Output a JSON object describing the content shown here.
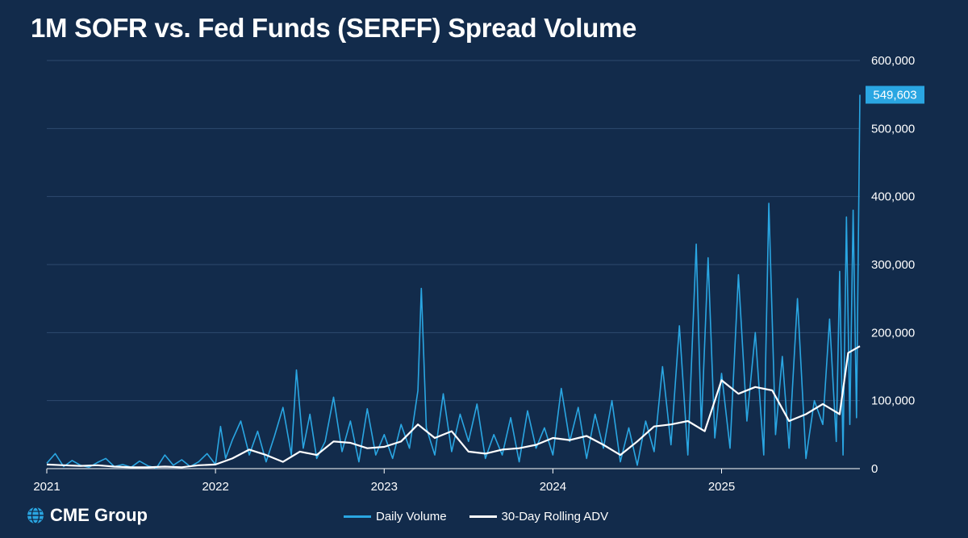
{
  "title": "1M SOFR vs. Fed Funds (SERFF) Spread Volume",
  "brand": {
    "logo_text": "CME Group",
    "logo_icon": "globe-icon"
  },
  "colors": {
    "background": "#122b4b",
    "daily": "#2aa6e2",
    "rolling": "#ffffff",
    "grid": "#2e4a6e",
    "callout": "#2aa6e2"
  },
  "legend": [
    {
      "label": "Daily Volume",
      "color": "#2aa6e2"
    },
    {
      "label": "30-Day Rolling ADV",
      "color": "#ffffff"
    }
  ],
  "chart_data": {
    "type": "line",
    "title": "1M SOFR vs. Fed Funds (SERFF) Spread Volume",
    "xlabel": "",
    "ylabel": "",
    "xlim": [
      2021.0,
      2025.82
    ],
    "ylim": [
      0,
      600000
    ],
    "x_ticks": [
      {
        "value": 2021,
        "label": "2021"
      },
      {
        "value": 2022,
        "label": "2022"
      },
      {
        "value": 2023,
        "label": "2023"
      },
      {
        "value": 2024,
        "label": "2024"
      },
      {
        "value": 2025,
        "label": "2025"
      }
    ],
    "y_ticks": [
      {
        "value": 0,
        "label": "0"
      },
      {
        "value": 100000,
        "label": "100,000"
      },
      {
        "value": 200000,
        "label": "200,000"
      },
      {
        "value": 300000,
        "label": "300,000"
      },
      {
        "value": 400000,
        "label": "400,000"
      },
      {
        "value": 500000,
        "label": "500,000"
      },
      {
        "value": 600000,
        "label": "600,000"
      }
    ],
    "last_value_label": "549,603",
    "last_value": 549603,
    "series": [
      {
        "name": "Daily Volume",
        "x": [
          2021.0,
          2021.05,
          2021.1,
          2021.15,
          2021.2,
          2021.25,
          2021.3,
          2021.35,
          2021.4,
          2021.45,
          2021.5,
          2021.55,
          2021.6,
          2021.65,
          2021.7,
          2021.75,
          2021.8,
          2021.85,
          2021.9,
          2021.95,
          2022.0,
          2022.03,
          2022.06,
          2022.1,
          2022.15,
          2022.2,
          2022.25,
          2022.3,
          2022.35,
          2022.4,
          2022.45,
          2022.48,
          2022.52,
          2022.56,
          2022.6,
          2022.65,
          2022.7,
          2022.75,
          2022.8,
          2022.85,
          2022.9,
          2022.95,
          2023.0,
          2023.05,
          2023.1,
          2023.15,
          2023.2,
          2023.22,
          2023.25,
          2023.3,
          2023.35,
          2023.4,
          2023.45,
          2023.5,
          2023.55,
          2023.6,
          2023.65,
          2023.7,
          2023.75,
          2023.8,
          2023.85,
          2023.9,
          2023.95,
          2024.0,
          2024.05,
          2024.1,
          2024.15,
          2024.2,
          2024.25,
          2024.3,
          2024.35,
          2024.4,
          2024.45,
          2024.5,
          2024.55,
          2024.6,
          2024.65,
          2024.7,
          2024.75,
          2024.8,
          2024.85,
          2024.88,
          2024.92,
          2024.96,
          2025.0,
          2025.05,
          2025.1,
          2025.15,
          2025.2,
          2025.25,
          2025.28,
          2025.32,
          2025.36,
          2025.4,
          2025.45,
          2025.5,
          2025.55,
          2025.6,
          2025.64,
          2025.68,
          2025.7,
          2025.72,
          2025.74,
          2025.76,
          2025.78,
          2025.8,
          2025.82
        ],
        "values": [
          8000,
          22000,
          3000,
          12000,
          5000,
          2000,
          9000,
          15000,
          3000,
          6000,
          2000,
          11000,
          4000,
          1000,
          20000,
          5000,
          13000,
          3000,
          10000,
          22000,
          6000,
          62000,
          15000,
          42000,
          70000,
          20000,
          55000,
          10000,
          48000,
          90000,
          20000,
          145000,
          30000,
          80000,
          15000,
          40000,
          105000,
          25000,
          70000,
          10000,
          88000,
          20000,
          50000,
          15000,
          65000,
          30000,
          115000,
          265000,
          60000,
          20000,
          110000,
          25000,
          80000,
          40000,
          95000,
          15000,
          50000,
          20000,
          75000,
          10000,
          85000,
          30000,
          60000,
          20000,
          118000,
          40000,
          90000,
          15000,
          80000,
          30000,
          100000,
          10000,
          60000,
          5000,
          70000,
          25000,
          150000,
          35000,
          210000,
          20000,
          330000,
          60000,
          310000,
          45000,
          140000,
          30000,
          285000,
          70000,
          200000,
          20000,
          390000,
          50000,
          165000,
          30000,
          250000,
          15000,
          100000,
          65000,
          220000,
          40000,
          290000,
          20000,
          370000,
          65000,
          380000,
          75000,
          549603
        ]
      },
      {
        "name": "30-Day Rolling ADV",
        "x": [
          2021.0,
          2021.1,
          2021.2,
          2021.3,
          2021.4,
          2021.5,
          2021.6,
          2021.7,
          2021.8,
          2021.9,
          2022.0,
          2022.1,
          2022.2,
          2022.3,
          2022.4,
          2022.5,
          2022.6,
          2022.7,
          2022.8,
          2022.9,
          2023.0,
          2023.1,
          2023.2,
          2023.3,
          2023.4,
          2023.5,
          2023.6,
          2023.7,
          2023.8,
          2023.9,
          2024.0,
          2024.1,
          2024.2,
          2024.3,
          2024.4,
          2024.5,
          2024.6,
          2024.7,
          2024.8,
          2024.9,
          2025.0,
          2025.1,
          2025.2,
          2025.3,
          2025.4,
          2025.5,
          2025.6,
          2025.7,
          2025.75,
          2025.82
        ],
        "values": [
          6000,
          5000,
          4000,
          5000,
          3000,
          2000,
          2000,
          3000,
          2000,
          5000,
          6000,
          15000,
          28000,
          20000,
          10000,
          25000,
          20000,
          40000,
          38000,
          30000,
          32000,
          40000,
          65000,
          45000,
          55000,
          25000,
          22000,
          28000,
          30000,
          35000,
          45000,
          42000,
          48000,
          35000,
          20000,
          40000,
          62000,
          65000,
          70000,
          55000,
          130000,
          110000,
          120000,
          115000,
          70000,
          80000,
          95000,
          80000,
          170000,
          180000
        ]
      }
    ]
  }
}
